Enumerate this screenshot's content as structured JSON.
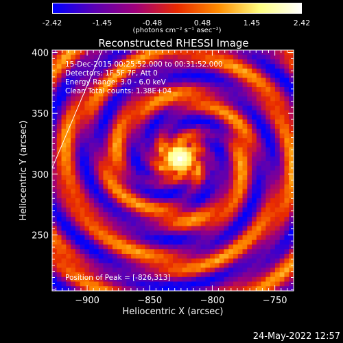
{
  "colorbar": {
    "tick_labels": [
      "-2.42",
      "-1.45",
      "-0.48",
      "0.48",
      "1.45",
      "2.42"
    ],
    "units_label": "(photons cm⁻² s⁻¹ asec⁻²)",
    "colormap": [
      "#0000ff",
      "#5a00b4",
      "#a0007a",
      "#e82a00",
      "#ff8c00",
      "#ffff80",
      "#ffffff"
    ]
  },
  "chart_data": {
    "type": "heatmap",
    "title": "Reconstructed RHESSI Image",
    "xlabel": "Heliocentric X (arcsec)",
    "ylabel": "Heliocentric Y (arcsec)",
    "xlim": [
      -928,
      -735
    ],
    "ylim": [
      204,
      402
    ],
    "x_ticks": [
      -900,
      -850,
      -800,
      -750
    ],
    "y_ticks": [
      250,
      300,
      350,
      400
    ],
    "x_tick_labels": [
      "−900",
      "−850",
      "−800",
      "−750"
    ],
    "y_tick_labels": [
      "250",
      "300",
      "350",
      "400"
    ],
    "peak_position": [
      -826,
      313
    ],
    "limb_line": [
      [
        -928,
        305
      ],
      [
        -888,
        402
      ]
    ],
    "annotations": [
      "15-Dec-2015 00:25:52.000 to 00:31:52.000",
      "Detectors: 1F 5F 7F, Att 0",
      "Energy Range: 3.0 - 6.0 keV",
      "Clean      Total counts: 1.38E+04"
    ],
    "peak_label": "Position of Peak = [-826,313]"
  },
  "footer": {
    "timestamp": "24-May-2022 12:57"
  }
}
